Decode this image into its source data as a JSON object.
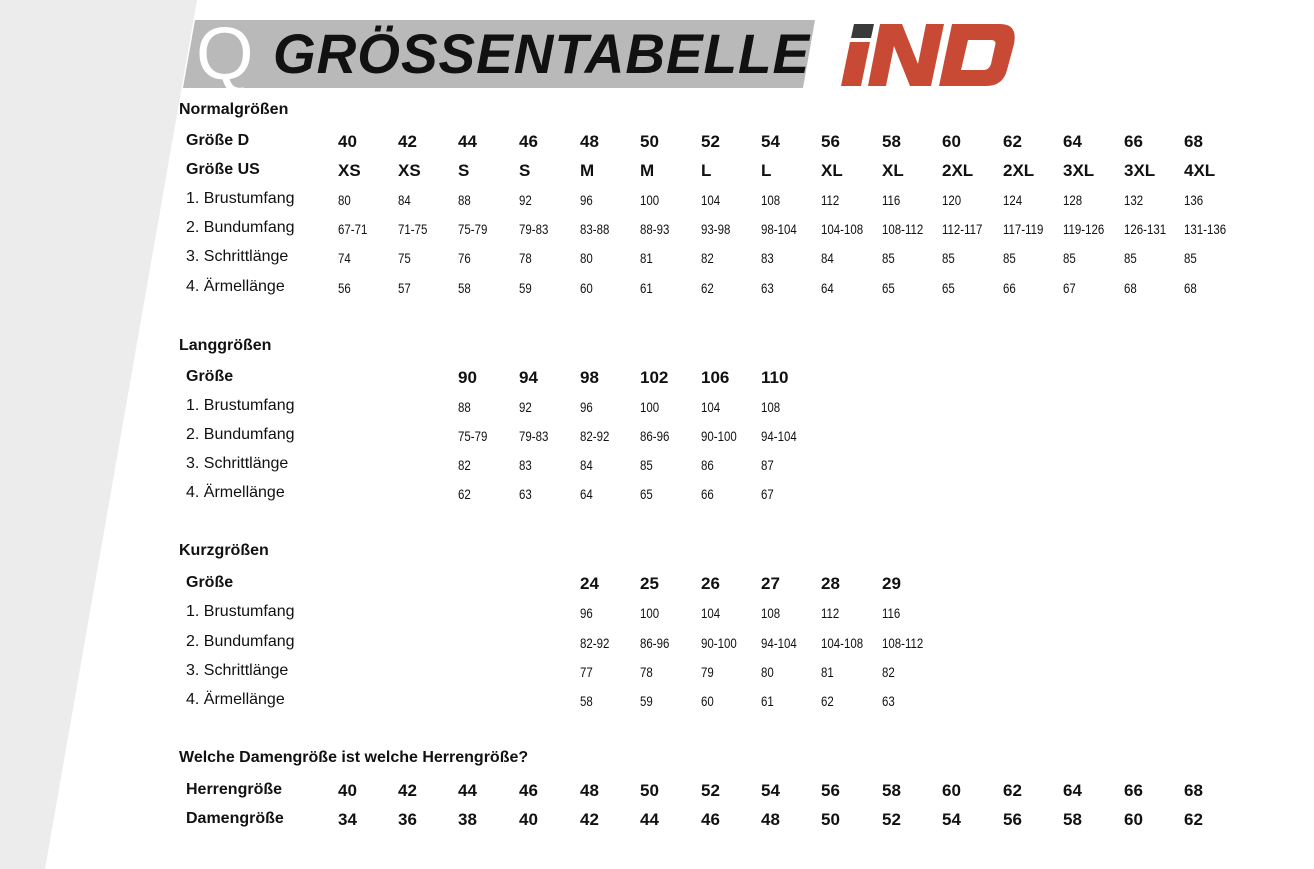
{
  "header": {
    "q_letter": "Q",
    "title": "GRÖSSENTABELLE",
    "logo_text": "IND",
    "logo_color": "#c94a34"
  },
  "normal": {
    "heading": "Normalgrößen",
    "start_col": 0,
    "rows": [
      {
        "label": "Größe D",
        "bold": true,
        "values": [
          "40",
          "42",
          "44",
          "46",
          "48",
          "50",
          "52",
          "54",
          "56",
          "58",
          "60",
          "62",
          "64",
          "66",
          "68"
        ]
      },
      {
        "label": "Größe US",
        "bold": true,
        "values": [
          "XS",
          "XS",
          "S",
          "S",
          "M",
          "M",
          "L",
          "L",
          "XL",
          "XL",
          "2XL",
          "2XL",
          "3XL",
          "3XL",
          "4XL"
        ]
      },
      {
        "label": "1. Brustumfang",
        "values": [
          "80",
          "84",
          "88",
          "92",
          "96",
          "100",
          "104",
          "108",
          "112",
          "116",
          "120",
          "124",
          "128",
          "132",
          "136"
        ]
      },
      {
        "label": "2. Bundumfang",
        "values": [
          "67-71",
          "71-75",
          "75-79",
          "79-83",
          "83-88",
          "88-93",
          "93-98",
          "98-104",
          "104-108",
          "108-112",
          "112-117",
          "117-119",
          "119-126",
          "126-131",
          "131-136"
        ]
      },
      {
        "label": "3. Schrittlänge",
        "values": [
          "74",
          "75",
          "76",
          "78",
          "80",
          "81",
          "82",
          "83",
          "84",
          "85",
          "85",
          "85",
          "85",
          "85",
          "85"
        ]
      },
      {
        "label": "4. Ärmellänge",
        "values": [
          "56",
          "57",
          "58",
          "59",
          "60",
          "61",
          "62",
          "63",
          "64",
          "65",
          "65",
          "66",
          "67",
          "68",
          "68"
        ]
      }
    ]
  },
  "lang": {
    "heading": "Langgrößen",
    "start_col": 2,
    "rows": [
      {
        "label": "Größe",
        "bold": true,
        "values": [
          "90",
          "94",
          "98",
          "102",
          "106",
          "110"
        ]
      },
      {
        "label": "1. Brustumfang",
        "values": [
          "88",
          "92",
          "96",
          "100",
          "104",
          "108"
        ]
      },
      {
        "label": "2. Bundumfang",
        "values": [
          "75-79",
          "79-83",
          "82-92",
          "86-96",
          "90-100",
          "94-104"
        ]
      },
      {
        "label": "3. Schrittlänge",
        "values": [
          "82",
          "83",
          "84",
          "85",
          "86",
          "87"
        ]
      },
      {
        "label": "4. Ärmellänge",
        "values": [
          "62",
          "63",
          "64",
          "65",
          "66",
          "67"
        ]
      }
    ]
  },
  "kurz": {
    "heading": "Kurzgrößen",
    "start_col": 4,
    "rows": [
      {
        "label": "Größe",
        "bold": true,
        "values": [
          "24",
          "25",
          "26",
          "27",
          "28",
          "29"
        ]
      },
      {
        "label": "1. Brustumfang",
        "values": [
          "96",
          "100",
          "104",
          "108",
          "112",
          "116"
        ]
      },
      {
        "label": "2. Bundumfang",
        "values": [
          "82-92",
          "86-96",
          "90-100",
          "94-104",
          "104-108",
          "108-112"
        ]
      },
      {
        "label": "3. Schrittlänge",
        "values": [
          "77",
          "78",
          "79",
          "80",
          "81",
          "82"
        ]
      },
      {
        "label": "4. Ärmellänge",
        "values": [
          "58",
          "59",
          "60",
          "61",
          "62",
          "63"
        ]
      }
    ]
  },
  "damen": {
    "heading": "Welche Damengröße ist welche Herrengröße?",
    "start_col": 0,
    "rows": [
      {
        "label": "Herrengröße",
        "bold": true,
        "values": [
          "40",
          "42",
          "44",
          "46",
          "48",
          "50",
          "52",
          "54",
          "56",
          "58",
          "60",
          "62",
          "64",
          "66",
          "68"
        ]
      },
      {
        "label": "Damengröße",
        "bold": true,
        "values": [
          "34",
          "36",
          "38",
          "40",
          "42",
          "44",
          "46",
          "48",
          "50",
          "52",
          "54",
          "56",
          "58",
          "60",
          "62"
        ]
      }
    ]
  }
}
